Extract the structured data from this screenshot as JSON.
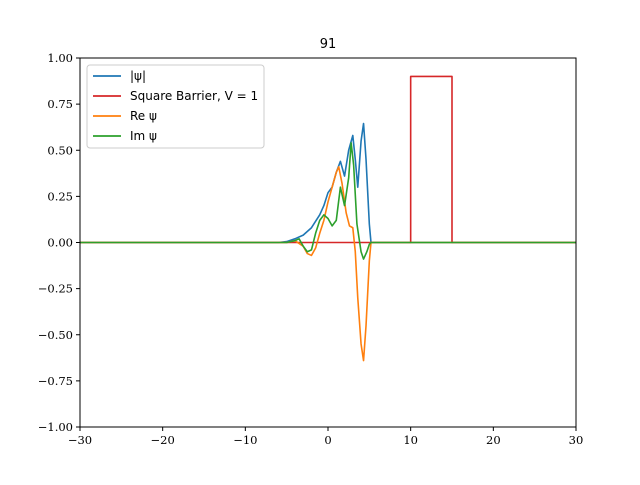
{
  "chart_data": {
    "type": "line",
    "title": "91",
    "xlabel": "",
    "ylabel": "",
    "xlim": [
      -30,
      30
    ],
    "ylim": [
      -1.0,
      1.0
    ],
    "grid": false,
    "legend_position": "top-left",
    "x_ticks": [
      -30,
      -20,
      -10,
      0,
      10,
      20,
      30
    ],
    "x_tick_labels": [
      "−30",
      "−20",
      "−10",
      "0",
      "10",
      "20",
      "30"
    ],
    "y_ticks": [
      -1.0,
      -0.75,
      -0.5,
      -0.25,
      0.0,
      0.25,
      0.5,
      0.75,
      1.0
    ],
    "y_tick_labels": [
      "−1.00",
      "−0.75",
      "−0.50",
      "−0.25",
      "0.00",
      "0.25",
      "0.50",
      "0.75",
      "1.00"
    ],
    "series": [
      {
        "name": "|ψ|",
        "color": "#1f77b4",
        "points": [
          [
            -30,
            0
          ],
          [
            -6,
            0
          ],
          [
            -5,
            0.005
          ],
          [
            -4,
            0.02
          ],
          [
            -3,
            0.04
          ],
          [
            -2,
            0.08
          ],
          [
            -1,
            0.15
          ],
          [
            -0.5,
            0.2
          ],
          [
            0,
            0.27
          ],
          [
            0.5,
            0.3
          ],
          [
            1,
            0.38
          ],
          [
            1.5,
            0.44
          ],
          [
            2,
            0.36
          ],
          [
            2.5,
            0.5
          ],
          [
            3,
            0.58
          ],
          [
            3.3,
            0.45
          ],
          [
            3.6,
            0.3
          ],
          [
            4,
            0.55
          ],
          [
            4.3,
            0.645
          ],
          [
            4.6,
            0.45
          ],
          [
            5,
            0.1
          ],
          [
            5.2,
            0
          ],
          [
            30,
            0
          ]
        ]
      },
      {
        "name": "Square Barrier, V = 1",
        "color": "#d62728",
        "points": [
          [
            -30,
            0
          ],
          [
            10,
            0
          ],
          [
            10,
            0.9
          ],
          [
            15,
            0.9
          ],
          [
            15,
            0
          ],
          [
            30,
            0
          ]
        ]
      },
      {
        "name": "Re ψ",
        "color": "#ff7f0e",
        "points": [
          [
            -30,
            0
          ],
          [
            -5,
            0
          ],
          [
            -4,
            0.01
          ],
          [
            -3,
            -0.02
          ],
          [
            -2.5,
            -0.06
          ],
          [
            -2,
            -0.07
          ],
          [
            -1.5,
            -0.03
          ],
          [
            -1,
            0.05
          ],
          [
            -0.5,
            0.12
          ],
          [
            0,
            0.22
          ],
          [
            0.5,
            0.3
          ],
          [
            1,
            0.38
          ],
          [
            1.3,
            0.41
          ],
          [
            1.7,
            0.32
          ],
          [
            2.2,
            0.16
          ],
          [
            2.6,
            0.09
          ],
          [
            3,
            0.08
          ],
          [
            3.3,
            -0.05
          ],
          [
            3.6,
            -0.3
          ],
          [
            4,
            -0.55
          ],
          [
            4.3,
            -0.64
          ],
          [
            4.6,
            -0.45
          ],
          [
            5,
            -0.1
          ],
          [
            5.2,
            0
          ],
          [
            30,
            0
          ]
        ]
      },
      {
        "name": "Im ψ",
        "color": "#2ca02c",
        "points": [
          [
            -30,
            0
          ],
          [
            -5,
            0
          ],
          [
            -4,
            0.01
          ],
          [
            -3.5,
            0.02
          ],
          [
            -3,
            -0.02
          ],
          [
            -2.5,
            -0.05
          ],
          [
            -2,
            -0.04
          ],
          [
            -1.5,
            0.05
          ],
          [
            -1,
            0.12
          ],
          [
            -0.5,
            0.15
          ],
          [
            0,
            0.13
          ],
          [
            0.5,
            0.09
          ],
          [
            1,
            0.12
          ],
          [
            1.5,
            0.3
          ],
          [
            2,
            0.2
          ],
          [
            2.5,
            0.35
          ],
          [
            2.8,
            0.54
          ],
          [
            3.1,
            0.42
          ],
          [
            3.5,
            0.1
          ],
          [
            4,
            -0.05
          ],
          [
            4.3,
            -0.09
          ],
          [
            4.7,
            -0.05
          ],
          [
            5,
            -0.01
          ],
          [
            5.2,
            0
          ],
          [
            30,
            0
          ]
        ]
      }
    ]
  }
}
